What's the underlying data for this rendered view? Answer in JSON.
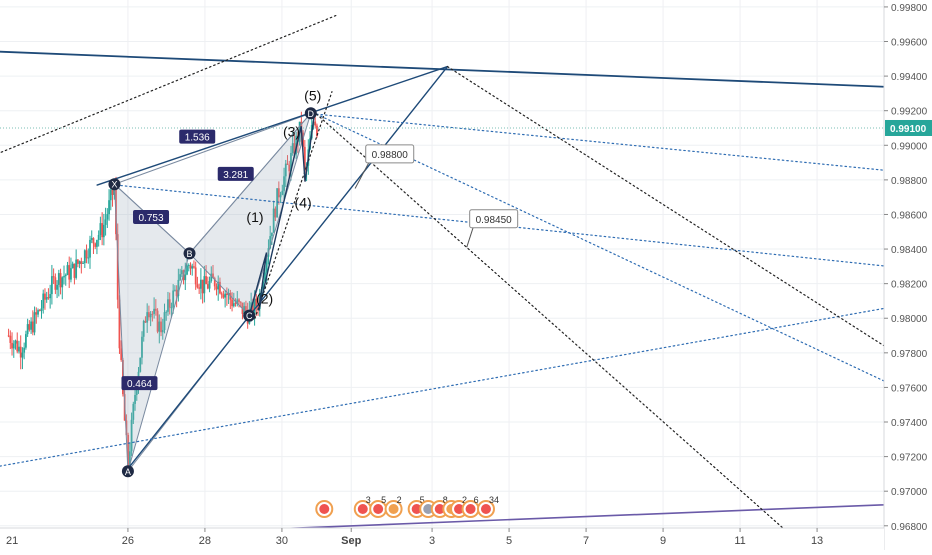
{
  "chart_data": {
    "type": "candlestick",
    "y_axis": {
      "ylim": [
        0.9666,
        0.9984
      ],
      "tick_values": [
        0.998,
        0.996,
        0.994,
        0.992,
        0.99,
        0.988,
        0.986,
        0.984,
        0.982,
        0.98,
        0.978,
        0.976,
        0.974,
        0.972,
        0.97,
        0.968
      ],
      "tick_labels": [
        "0.99800",
        "0.99600",
        "0.99400",
        "0.99200",
        "0.99000",
        "0.98800",
        "0.98600",
        "0.98400",
        "0.98200",
        "0.98000",
        "0.97800",
        "0.97600",
        "0.97400",
        "0.97200",
        "0.97000",
        "0.96800"
      ],
      "position": "right"
    },
    "x_axis": {
      "tick_labels": [
        "21",
        "26",
        "28",
        "30",
        "Sep",
        "3",
        "5",
        "7",
        "9",
        "11",
        "13"
      ],
      "tick_days": [
        -0.2,
        26,
        28,
        30,
        31.8,
        33.9,
        35.9,
        37.9,
        39.9,
        41.9,
        43.9
      ]
    },
    "current_price": {
      "value": 0.991,
      "label": "0.99100",
      "color": "#26a69a"
    },
    "price_line": {
      "color": "#7bbfb6"
    },
    "candle_colors": {
      "up": "#26a69a",
      "down": "#ef5350"
    },
    "grid": true,
    "harmonic_pattern": {
      "fill": "rgba(160,175,190,0.28)",
      "line_color": "#7a8aa0",
      "points": [
        {
          "label": "X",
          "day": 25.65,
          "price": 0.98775
        },
        {
          "label": "A",
          "day": 26.0,
          "price": 0.97115
        },
        {
          "label": "B",
          "day": 27.6,
          "price": 0.98375
        },
        {
          "label": "C",
          "day": 29.15,
          "price": 0.98015
        },
        {
          "label": "D",
          "day": 30.75,
          "price": 0.99185
        }
      ],
      "ratios": [
        {
          "label": "1.536",
          "day": 27.8,
          "price": 0.9905
        },
        {
          "label": "0.753",
          "day": 26.6,
          "price": 0.98585
        },
        {
          "label": "3.281",
          "day": 28.8,
          "price": 0.98835
        },
        {
          "label": "0.464",
          "day": 26.3,
          "price": 0.97625
        }
      ]
    },
    "elliott_wave": {
      "line_color": "#1e3a5f",
      "points": [
        {
          "label": "(1)",
          "day": 29.6,
          "price": 0.9838,
          "lx": 29.3,
          "ly": 0.98555
        },
        {
          "label": "(2)",
          "day": 29.4,
          "price": 0.98045,
          "lx": 29.55,
          "ly": 0.98085
        },
        {
          "label": "(3)",
          "day": 30.5,
          "price": 0.9911,
          "lx": 30.25,
          "ly": 0.9905
        },
        {
          "label": "(4)",
          "day": 30.6,
          "price": 0.9879,
          "lx": 30.55,
          "ly": 0.9864
        },
        {
          "label": "(5)",
          "day": 30.85,
          "price": 0.9919,
          "lx": 30.8,
          "ly": 0.9926
        }
      ]
    },
    "price_labels": [
      {
        "label": "0.98800",
        "day": 32.8,
        "price": 0.9895,
        "tip_day": 31.9,
        "tip_price": 0.9875
      },
      {
        "label": "0.98450",
        "day": 35.5,
        "price": 0.98575,
        "tip_day": 34.8,
        "tip_price": 0.9841
      }
    ],
    "trend_lines": [
      {
        "style": "solid",
        "color": "#1e4a78",
        "width": 1.8,
        "p1": [
          16.0,
          0.996
        ],
        "p2": [
          50.0,
          0.993
        ]
      },
      {
        "style": "solid",
        "color": "#1e4a78",
        "width": 1.4,
        "p1": [
          25.2,
          0.9877
        ],
        "p2": [
          34.3,
          0.99455
        ]
      },
      {
        "style": "solid",
        "color": "#1e4a78",
        "width": 1.4,
        "p1": [
          26.0,
          0.9713
        ],
        "p2": [
          34.3,
          0.99455
        ]
      },
      {
        "style": "solid",
        "color": "#6a5aa8",
        "width": 1.6,
        "p1": [
          16.0,
          0.9666
        ],
        "p2": [
          50.0,
          0.9696
        ]
      },
      {
        "style": "dotted",
        "color": "#2f6db3",
        "width": 1.2,
        "p1": [
          16.0,
          0.9688
        ],
        "p2": [
          50.0,
          0.9823
        ]
      },
      {
        "style": "dotted",
        "color": "#2f6db3",
        "width": 1.2,
        "p1": [
          25.7,
          0.9877
        ],
        "p2": [
          50.0,
          0.982
        ]
      },
      {
        "style": "dotted",
        "color": "#2f6db3",
        "width": 1.2,
        "p1": [
          30.9,
          0.9918
        ],
        "p2": [
          50.0,
          0.9876
        ]
      },
      {
        "style": "dotted",
        "color": "#2f6db3",
        "width": 1.2,
        "p1": [
          30.9,
          0.9918
        ],
        "p2": [
          45.9,
          0.9761
        ]
      },
      {
        "style": "dotted",
        "color": "#222222",
        "width": 1.2,
        "p1": [
          16.0,
          0.9835
        ],
        "p2": [
          31.4,
          0.9975
        ]
      },
      {
        "style": "dotted",
        "color": "#222222",
        "width": 1.2,
        "p1": [
          34.3,
          0.99455
        ],
        "p2": [
          50.0,
          0.9722
        ]
      },
      {
        "style": "dotted",
        "color": "#222222",
        "width": 1.2,
        "p1": [
          30.9,
          0.9918
        ],
        "p2": [
          43.2,
          0.9675
        ]
      },
      {
        "style": "dotted",
        "color": "#222222",
        "width": 1.2,
        "p1": [
          29.3,
          0.98
        ],
        "p2": [
          31.3,
          0.9931
        ]
      }
    ],
    "event_icons": [
      {
        "day": 31.1,
        "label": "",
        "color": "#ef5350"
      },
      {
        "day": 32.1,
        "label": "3",
        "color": "#ef5350"
      },
      {
        "day": 32.5,
        "label": "5",
        "color": "#ef5350"
      },
      {
        "day": 32.9,
        "label": "2",
        "color": "#f0a050"
      },
      {
        "day": 33.5,
        "label": "5",
        "color": "#ef5350"
      },
      {
        "day": 33.8,
        "label": "",
        "color": "#9aa0b0"
      },
      {
        "day": 34.1,
        "label": "8",
        "color": "#ef5350"
      },
      {
        "day": 34.4,
        "label": "",
        "color": "#f0a050"
      },
      {
        "day": 34.6,
        "label": "2",
        "color": "#ef5350"
      },
      {
        "day": 34.9,
        "label": "6",
        "color": "#ef5350"
      },
      {
        "day": 35.3,
        "label": "34",
        "color": "#ef5350"
      }
    ]
  }
}
